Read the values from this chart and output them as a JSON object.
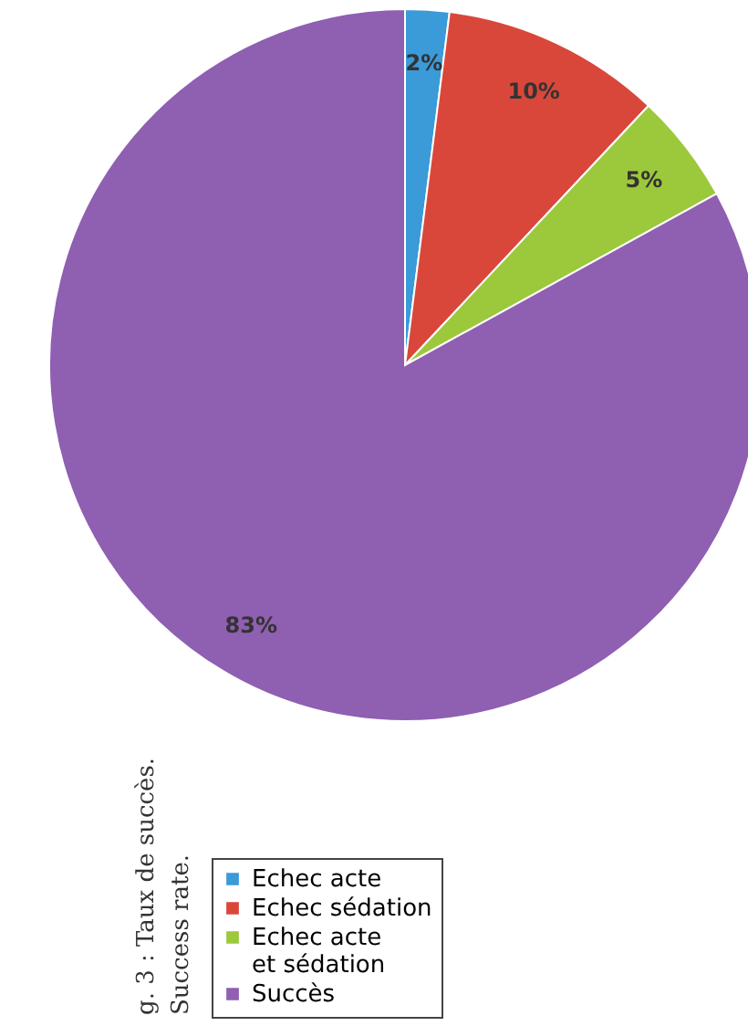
{
  "chart_data": {
    "type": "pie",
    "categories": [
      "Echec acte",
      "Echec sédation",
      "Echec acte\net sédation",
      "Succès"
    ],
    "values": [
      2,
      10,
      5,
      83
    ],
    "colors": [
      "#3b9ad8",
      "#d9473b",
      "#9cc83c",
      "#8f5fb2"
    ],
    "value_labels": [
      "2%",
      "10%",
      "5%",
      "83%"
    ],
    "legend": "bottom left",
    "annotations": [
      "g. 3 : Taux de succès.",
      "Success rate."
    ]
  }
}
